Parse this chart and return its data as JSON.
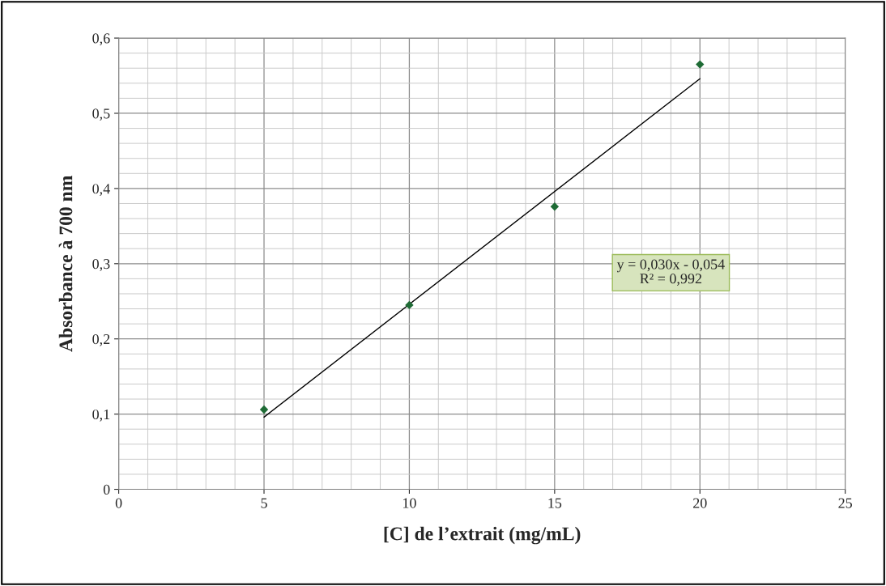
{
  "chart_data": {
    "type": "scatter",
    "xlabel": "[C] de l’extrait (mg/mL)",
    "ylabel": "Absorbance à 700 nm",
    "xlim": [
      0,
      25
    ],
    "ylim": [
      0,
      0.6
    ],
    "xticks": [
      0,
      5,
      10,
      15,
      20,
      25
    ],
    "yticks": [
      0,
      {
        "value": 0.1,
        "label": "0,1"
      },
      {
        "value": 0.2,
        "label": "0,2"
      },
      {
        "value": 0.3,
        "label": "0,3"
      },
      {
        "value": 0.4,
        "label": "0,4"
      },
      {
        "value": 0.5,
        "label": "0,5"
      },
      {
        "value": 0.6,
        "label": "0,6"
      }
    ],
    "grid": true,
    "marker": "diamond",
    "series": [
      {
        "color": "#1e6b35",
        "x": [
          5,
          10,
          15,
          20
        ],
        "values": [
          0.106,
          0.245,
          0.376,
          0.565
        ]
      },
      {
        "type": "line",
        "color": "#000000",
        "x": [
          5,
          20
        ],
        "values": [
          0.096,
          0.546
        ],
        "marker": "none",
        "line_style": "solid"
      }
    ],
    "annotations": [
      "y = 0,030x - 0,054\nR² = 0,992"
    ]
  }
}
